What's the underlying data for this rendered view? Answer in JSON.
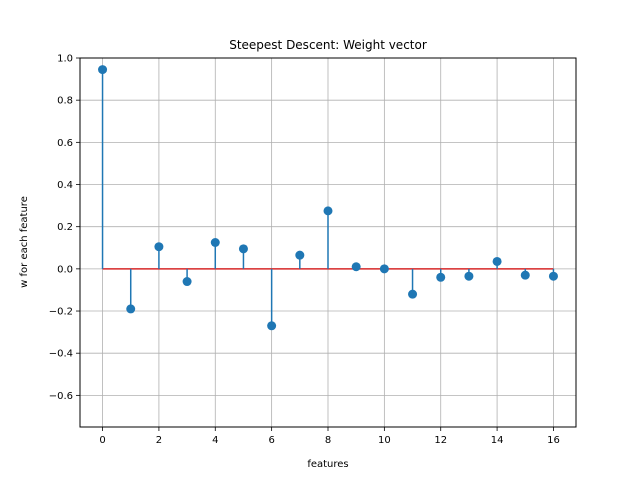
{
  "chart_data": {
    "type": "stem",
    "title": "Steepest Descent: Weight vector",
    "xlabel": "features",
    "ylabel": "w for each feature",
    "xlim": [
      -0.8,
      16.8
    ],
    "ylim": [
      -0.75,
      1.0
    ],
    "x_ticks": [
      0,
      2,
      4,
      6,
      8,
      10,
      12,
      14,
      16
    ],
    "x_tick_labels": [
      "0",
      "2",
      "4",
      "6",
      "8",
      "10",
      "12",
      "14",
      "16"
    ],
    "y_ticks": [
      -0.6,
      -0.4,
      -0.2,
      0.0,
      0.2,
      0.4,
      0.6,
      0.8,
      1.0
    ],
    "y_tick_labels": [
      "−0.6",
      "−0.4",
      "−0.2",
      "0.0",
      "0.2",
      "0.4",
      "0.6",
      "0.8",
      "1.0"
    ],
    "grid": true,
    "baseline": 0.0,
    "colors": {
      "stem": "#1f77b4",
      "marker": "#1f77b4",
      "baseline": "#d62728",
      "grid": "#b0b0b0"
    },
    "x": [
      0,
      1,
      2,
      3,
      4,
      5,
      6,
      7,
      8,
      9,
      10,
      11,
      12,
      13,
      14,
      15,
      16
    ],
    "values": [
      0.945,
      -0.19,
      0.105,
      -0.06,
      0.125,
      0.095,
      -0.27,
      0.065,
      0.275,
      0.01,
      0.0,
      -0.12,
      -0.04,
      -0.035,
      0.035,
      -0.03,
      -0.035
    ]
  }
}
